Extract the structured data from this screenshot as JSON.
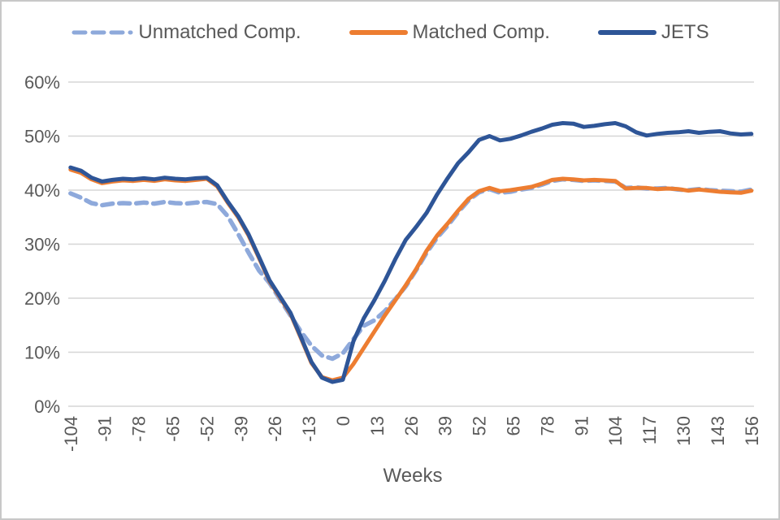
{
  "chart": {
    "style": {
      "grid_color": "#d6d6d6",
      "axis_color": "#d0d0d0",
      "text_color": "#595959",
      "background": "#ffffff"
    }
  },
  "chart_data": {
    "type": "line",
    "title": "",
    "xlabel": "Weeks",
    "ylabel": "",
    "ylim": [
      0,
      60
    ],
    "xlim": [
      -104,
      156
    ],
    "grid": "horizontal",
    "legend_position": "top",
    "y_ticks": [
      {
        "value": 0,
        "label": "0%"
      },
      {
        "value": 10,
        "label": "10%"
      },
      {
        "value": 20,
        "label": "20%"
      },
      {
        "value": 30,
        "label": "30%"
      },
      {
        "value": 40,
        "label": "40%"
      },
      {
        "value": 50,
        "label": "50%"
      },
      {
        "value": 60,
        "label": "60%"
      }
    ],
    "x_ticks": [
      -104,
      -91,
      -78,
      -65,
      -52,
      -39,
      -26,
      -13,
      0,
      13,
      26,
      39,
      52,
      65,
      78,
      91,
      104,
      117,
      130,
      143,
      156
    ],
    "x": [
      -104,
      -100,
      -96,
      -92,
      -88,
      -84,
      -80,
      -76,
      -72,
      -68,
      -64,
      -60,
      -56,
      -52,
      -48,
      -44,
      -40,
      -36,
      -32,
      -28,
      -24,
      -20,
      -16,
      -12,
      -8,
      -4,
      0,
      4,
      8,
      12,
      16,
      20,
      24,
      28,
      32,
      36,
      40,
      44,
      48,
      52,
      56,
      60,
      64,
      68,
      72,
      76,
      80,
      84,
      88,
      92,
      96,
      100,
      104,
      108,
      112,
      116,
      120,
      124,
      128,
      132,
      136,
      140,
      144,
      148,
      152,
      156
    ],
    "series": [
      {
        "name": "Unmatched Comp.",
        "color": "#8ea9db",
        "style": "dashed",
        "values": [
          39.4,
          38.6,
          37.6,
          37.2,
          37.5,
          37.6,
          37.5,
          37.7,
          37.5,
          37.8,
          37.6,
          37.5,
          37.7,
          37.8,
          37.4,
          35.2,
          31.9,
          28.4,
          25.1,
          22.8,
          19.8,
          16.8,
          13.8,
          11.2,
          9.4,
          8.8,
          9.8,
          12.4,
          14.9,
          15.9,
          17.6,
          19.8,
          22.2,
          25.2,
          28.4,
          31.2,
          33.4,
          35.9,
          38.1,
          39.6,
          40.2,
          39.5,
          39.7,
          40.1,
          40.4,
          41.0,
          41.7,
          42.0,
          41.9,
          41.7,
          41.8,
          41.7,
          41.6,
          40.4,
          40.5,
          40.3,
          40.3,
          40.4,
          40.1,
          40.0,
          40.2,
          40.0,
          39.9,
          39.8,
          39.7,
          40.1
        ]
      },
      {
        "name": "Matched Comp.",
        "color": "#ed7d31",
        "style": "solid",
        "values": [
          43.8,
          43.2,
          42.0,
          41.3,
          41.6,
          41.8,
          41.7,
          41.9,
          41.7,
          42.0,
          41.8,
          41.7,
          41.9,
          42.1,
          40.7,
          37.7,
          35.0,
          31.6,
          27.4,
          23.1,
          20.1,
          17.1,
          12.6,
          8.0,
          5.4,
          4.8,
          5.3,
          7.8,
          10.8,
          13.8,
          16.8,
          19.6,
          22.4,
          25.4,
          28.8,
          31.6,
          33.8,
          36.2,
          38.4,
          39.8,
          40.4,
          39.8,
          40.0,
          40.3,
          40.6,
          41.2,
          41.9,
          42.1,
          42.0,
          41.8,
          41.9,
          41.8,
          41.7,
          40.3,
          40.4,
          40.4,
          40.2,
          40.3,
          40.2,
          39.9,
          40.1,
          39.9,
          39.7,
          39.6,
          39.5,
          39.9
        ]
      },
      {
        "name": "JETS",
        "color": "#2e5597",
        "style": "solid",
        "values": [
          44.2,
          43.6,
          42.3,
          41.6,
          41.9,
          42.1,
          42.0,
          42.2,
          42.0,
          42.3,
          42.1,
          42.0,
          42.2,
          42.3,
          40.9,
          37.9,
          35.2,
          31.8,
          27.6,
          23.3,
          20.3,
          17.3,
          12.8,
          8.2,
          5.3,
          4.5,
          4.9,
          12.0,
          16.3,
          19.6,
          23.2,
          27.2,
          30.8,
          33.2,
          35.8,
          39.2,
          42.2,
          45.0,
          47.0,
          49.3,
          50.0,
          49.2,
          49.5,
          50.1,
          50.8,
          51.4,
          52.1,
          52.4,
          52.3,
          51.7,
          51.9,
          52.2,
          52.4,
          51.8,
          50.7,
          50.1,
          50.4,
          50.6,
          50.7,
          50.9,
          50.6,
          50.8,
          50.9,
          50.5,
          50.3,
          50.4
        ]
      }
    ]
  }
}
